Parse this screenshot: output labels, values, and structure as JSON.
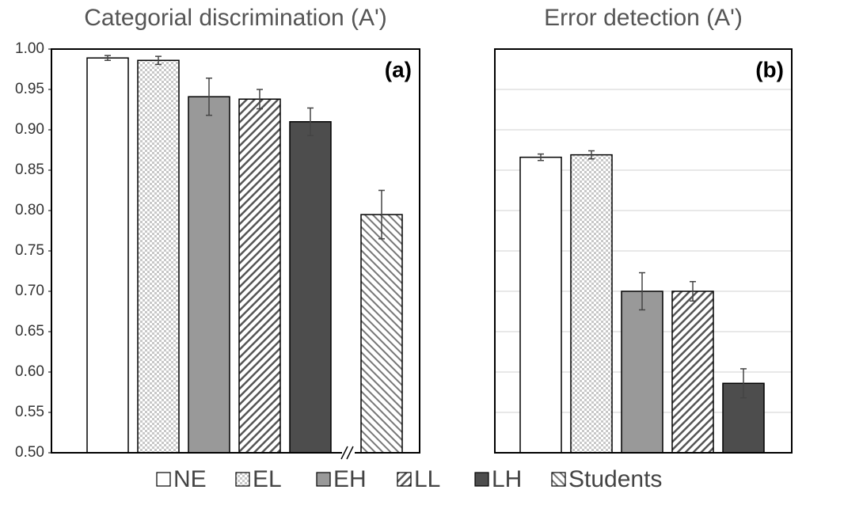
{
  "chart_data": [
    {
      "type": "bar",
      "title": "Categorial discrimination (A')",
      "label": "(a)",
      "categories": [
        "NE",
        "EL",
        "EH",
        "LL",
        "LH",
        "Students"
      ],
      "values": [
        0.989,
        0.986,
        0.941,
        0.938,
        0.91,
        0.795
      ],
      "errors": [
        0.003,
        0.005,
        0.023,
        0.012,
        0.017,
        0.03
      ],
      "colors": [
        "#ffffff",
        "#ffffff",
        "#999999",
        "#ffffff",
        "#4d4d4d",
        "#ffffff"
      ],
      "patterns": [
        "none",
        "dots",
        "none",
        "diagonal",
        "none",
        "back-diagonal"
      ],
      "ylim": [
        0.5,
        1.0
      ],
      "yticks": [
        {
          "value": 0.5,
          "label": "0.50"
        },
        {
          "value": 0.55,
          "label": "0.55"
        },
        {
          "value": 0.6,
          "label": "0.60"
        },
        {
          "value": 0.65,
          "label": "0.65"
        },
        {
          "value": 0.7,
          "label": "0.70"
        },
        {
          "value": 0.75,
          "label": "0.75"
        },
        {
          "value": 0.8,
          "label": "0.80"
        },
        {
          "value": 0.85,
          "label": "0.85"
        },
        {
          "value": 0.9,
          "label": "0.90"
        },
        {
          "value": 0.95,
          "label": "0.95"
        },
        {
          "value": 1.0,
          "label": "1.00"
        }
      ],
      "grid": false
    },
    {
      "type": "bar",
      "title": "Error detection (A')",
      "label": "(b)",
      "values": [
        0.866,
        0.869,
        0.7,
        0.7,
        0.586
      ],
      "errors": [
        0.004,
        0.005,
        0.023,
        0.012,
        0.018
      ],
      "ylim": [
        0.5,
        1.0
      ],
      "yticks": [
        0.5,
        0.55,
        0.6,
        0.65,
        0.7,
        0.75,
        0.8,
        0.85,
        0.9,
        0.95,
        1.0
      ],
      "grid": true
    }
  ]
}
